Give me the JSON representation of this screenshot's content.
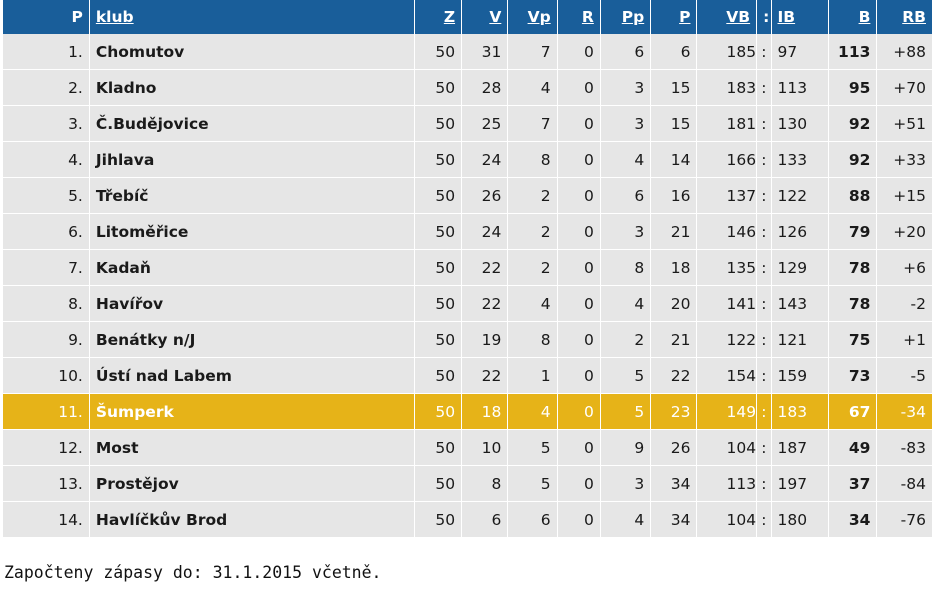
{
  "table": {
    "headers": {
      "pos": "P",
      "club": "klub",
      "z": "Z",
      "v": "V",
      "vp": "Vp",
      "r": "R",
      "pp": "Pp",
      "p": "P",
      "vb": "VB",
      "sep": ":",
      "ib": "IB",
      "b": "B",
      "rb": "RB"
    },
    "rows": [
      {
        "pos": "1.",
        "club": "Chomutov",
        "z": "50",
        "v": "31",
        "vp": "7",
        "r": "0",
        "pp": "6",
        "p": "6",
        "vb": "185",
        "sep": ":",
        "ib": "97",
        "b": "113",
        "rb": "+88"
      },
      {
        "pos": "2.",
        "club": "Kladno",
        "z": "50",
        "v": "28",
        "vp": "4",
        "r": "0",
        "pp": "3",
        "p": "15",
        "vb": "183",
        "sep": ":",
        "ib": "113",
        "b": "95",
        "rb": "+70"
      },
      {
        "pos": "3.",
        "club": "Č.Budějovice",
        "z": "50",
        "v": "25",
        "vp": "7",
        "r": "0",
        "pp": "3",
        "p": "15",
        "vb": "181",
        "sep": ":",
        "ib": "130",
        "b": "92",
        "rb": "+51"
      },
      {
        "pos": "4.",
        "club": "Jihlava",
        "z": "50",
        "v": "24",
        "vp": "8",
        "r": "0",
        "pp": "4",
        "p": "14",
        "vb": "166",
        "sep": ":",
        "ib": "133",
        "b": "92",
        "rb": "+33"
      },
      {
        "pos": "5.",
        "club": "Třebíč",
        "z": "50",
        "v": "26",
        "vp": "2",
        "r": "0",
        "pp": "6",
        "p": "16",
        "vb": "137",
        "sep": ":",
        "ib": "122",
        "b": "88",
        "rb": "+15"
      },
      {
        "pos": "6.",
        "club": "Litoměřice",
        "z": "50",
        "v": "24",
        "vp": "2",
        "r": "0",
        "pp": "3",
        "p": "21",
        "vb": "146",
        "sep": ":",
        "ib": "126",
        "b": "79",
        "rb": "+20"
      },
      {
        "pos": "7.",
        "club": "Kadaň",
        "z": "50",
        "v": "22",
        "vp": "2",
        "r": "0",
        "pp": "8",
        "p": "18",
        "vb": "135",
        "sep": ":",
        "ib": "129",
        "b": "78",
        "rb": "+6"
      },
      {
        "pos": "8.",
        "club": "Havířov",
        "z": "50",
        "v": "22",
        "vp": "4",
        "r": "0",
        "pp": "4",
        "p": "20",
        "vb": "141",
        "sep": ":",
        "ib": "143",
        "b": "78",
        "rb": "-2"
      },
      {
        "pos": "9.",
        "club": "Benátky n/J",
        "z": "50",
        "v": "19",
        "vp": "8",
        "r": "0",
        "pp": "2",
        "p": "21",
        "vb": "122",
        "sep": ":",
        "ib": "121",
        "b": "75",
        "rb": "+1"
      },
      {
        "pos": "10.",
        "club": "Ústí nad Labem",
        "z": "50",
        "v": "22",
        "vp": "1",
        "r": "0",
        "pp": "5",
        "p": "22",
        "vb": "154",
        "sep": ":",
        "ib": "159",
        "b": "73",
        "rb": "-5"
      },
      {
        "pos": "11.",
        "club": "Šumperk",
        "z": "50",
        "v": "18",
        "vp": "4",
        "r": "0",
        "pp": "5",
        "p": "23",
        "vb": "149",
        "sep": ":",
        "ib": "183",
        "b": "67",
        "rb": "-34",
        "highlight": true
      },
      {
        "pos": "12.",
        "club": "Most",
        "z": "50",
        "v": "10",
        "vp": "5",
        "r": "0",
        "pp": "9",
        "p": "26",
        "vb": "104",
        "sep": ":",
        "ib": "187",
        "b": "49",
        "rb": "-83"
      },
      {
        "pos": "13.",
        "club": "Prostějov",
        "z": "50",
        "v": "8",
        "vp": "5",
        "r": "0",
        "pp": "3",
        "p": "34",
        "vb": "113",
        "sep": ":",
        "ib": "197",
        "b": "37",
        "rb": "-84"
      },
      {
        "pos": "14.",
        "club": "Havlíčkův Brod",
        "z": "50",
        "v": "6",
        "vp": "6",
        "r": "0",
        "pp": "4",
        "p": "34",
        "vb": "104",
        "sep": ":",
        "ib": "180",
        "b": "34",
        "rb": "-76"
      }
    ]
  },
  "note": "Započteny zápasy do: 31.1.2015 včetně.",
  "colors": {
    "header_bg": "#195e9a",
    "row_bg": "#e6e6e6",
    "highlight_bg": "#e6b318"
  }
}
